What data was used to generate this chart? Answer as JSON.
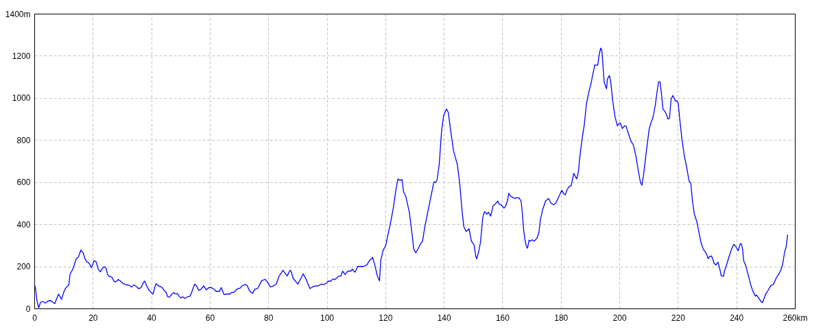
{
  "chart_data": {
    "type": "line",
    "x": [
      0,
      0.3,
      0.8,
      1.4,
      2.0,
      2.7,
      3.7,
      4.7,
      5.5,
      6.3,
      6.9,
      7.4,
      8.2,
      8.8,
      9.2,
      10.0,
      10.6,
      11.7,
      12.1,
      12.9,
      13.5,
      14.1,
      14.5,
      15.0,
      15.8,
      16.6,
      17.2,
      17.8,
      18.6,
      19.4,
      20.3,
      21.0,
      21.8,
      22.5,
      23.2,
      23.9,
      24.4,
      24.9,
      25.4,
      26.4,
      27.2,
      27.7,
      28.6,
      29.3,
      30.1,
      31.3,
      32.5,
      33.1,
      33.9,
      34.8,
      35.6,
      36.4,
      37.2,
      37.6,
      38.4,
      39.1,
      39.9,
      40.5,
      41.1,
      41.5,
      42.6,
      43.5,
      44.3,
      44.9,
      45.5,
      46.0,
      46.7,
      47.5,
      48.1,
      48.8,
      49.4,
      50.0,
      50.6,
      51.4,
      52.3,
      53.1,
      53.7,
      54.7,
      55.3,
      56.1,
      56.9,
      57.8,
      58.7,
      59.6,
      60.4,
      61.3,
      62.1,
      62.7,
      63.1,
      63.8,
      64.7,
      65.9,
      66.7,
      67.2,
      68.2,
      69.3,
      70.2,
      71.1,
      72.2,
      72.7,
      73.5,
      74.5,
      75.3,
      76.2,
      77.6,
      78.8,
      79.5,
      80.6,
      81.4,
      82.6,
      83.5,
      84.9,
      86.3,
      87.3,
      87.6,
      88.4,
      90.0,
      91.0,
      91.8,
      92.9,
      94.1,
      95.5,
      96.9,
      98.0,
      98.8,
      99.8,
      100.2,
      101.2,
      102.0,
      102.7,
      103.9,
      104.7,
      105.3,
      106.1,
      107.1,
      108.1,
      108.6,
      109.3,
      109.6,
      110.4,
      112.4,
      113.6,
      114.4,
      115.1,
      115.5,
      116.3,
      117.1,
      117.9,
      118.3,
      119.1,
      120.0,
      120.8,
      121.8,
      122.6,
      123.5,
      124.2,
      124.9,
      125.6,
      126.1,
      126.9,
      128.1,
      128.9,
      129.6,
      130.3,
      131.2,
      132.0,
      132.6,
      133.4,
      134.5,
      135.5,
      136.5,
      137.1,
      137.6,
      138.3,
      139.1,
      139.8,
      140.8,
      141.4,
      142.2,
      143.2,
      144.5,
      145.3,
      146.1,
      146.7,
      147.5,
      148.5,
      149.3,
      150.2,
      150.8,
      151.1,
      151.8,
      152.4,
      153.2,
      153.8,
      154.6,
      155.1,
      155.9,
      156.7,
      157.6,
      158.3,
      158.8,
      159.5,
      160.4,
      160.9,
      161.6,
      162.1,
      162.5,
      163.1,
      164.1,
      164.7,
      165.6,
      166.3,
      166.7,
      167.2,
      167.7,
      168.1,
      168.5,
      169.0,
      169.4,
      170.0,
      170.8,
      171.8,
      172.4,
      172.9,
      173.7,
      174.7,
      175.7,
      176.5,
      177.4,
      178.2,
      179.2,
      180.2,
      180.8,
      181.4,
      182.0,
      182.7,
      183.4,
      184.3,
      184.7,
      185.3,
      185.9,
      186.3,
      187.1,
      187.9,
      188.6,
      189.4,
      190.2,
      190.8,
      191.5,
      192.5,
      192.9,
      193.5,
      193.9,
      194.3,
      194.7,
      195.5,
      195.8,
      196.5,
      197.0,
      197.6,
      198.4,
      199.2,
      199.8,
      200.2,
      200.9,
      201.6,
      202.2,
      203.0,
      203.8,
      204.7,
      205.5,
      206.4,
      207.1,
      207.6,
      208.2,
      209.2,
      210.1,
      210.6,
      211.4,
      212.2,
      212.7,
      213.3,
      213.8,
      214.3,
      214.8,
      215.5,
      216.2,
      216.5,
      217.0,
      217.6,
      218.2,
      218.7,
      219.1,
      219.5,
      220.0,
      220.5,
      221.3,
      222.1,
      222.9,
      223.7,
      224.3,
      224.9,
      225.5,
      226.3,
      227.1,
      227.8,
      228.6,
      229.2,
      229.7,
      230.2,
      230.6,
      231.4,
      231.9,
      232.3,
      232.9,
      233.6,
      234.3,
      234.7,
      235.5,
      235.8,
      236.6,
      237.4,
      238.2,
      239.0,
      239.6,
      240.5,
      241.2,
      241.6,
      242.0,
      242.4,
      243.1,
      244.1,
      244.9,
      245.6,
      246.4,
      246.8,
      247.6,
      248.4,
      248.8,
      249.2,
      249.8,
      250.7,
      251.7,
      252.5,
      253.5,
      254.3,
      255.1,
      255.7,
      256.4,
      256.9,
      257.4
    ],
    "series": [
      {
        "color": "#0000ff",
        "values": [
          114,
          95,
          38,
          5,
          30,
          35,
          27,
          38,
          39,
          30,
          25,
          43,
          70,
          54,
          45,
          81,
          98,
          114,
          165,
          184,
          206,
          233,
          241,
          247,
          279,
          266,
          238,
          224,
          217,
          195,
          228,
          224,
          186,
          176,
          193,
          200,
          193,
          165,
          154,
          150,
          130,
          128,
          139,
          132,
          121,
          114,
          111,
          103,
          113,
          106,
          95,
          101,
          125,
          132,
          106,
          89,
          76,
          70,
          103,
          119,
          107,
          102,
          87,
          79,
          57,
          55,
          66,
          77,
          71,
          72,
          60,
          51,
          57,
          49,
          57,
          60,
          79,
          117,
          109,
          87,
          93,
          109,
          90,
          101,
          101,
          93,
          82,
          84,
          81,
          101,
          68,
          70,
          70,
          77,
          79,
          95,
          98,
          111,
          115,
          109,
          85,
          73,
          93,
          96,
          133,
          140,
          129,
          104,
          107,
          117,
          153,
          183,
          156,
          183,
          180,
          144,
          117,
          144,
          166,
          137,
          96,
          107,
          109,
          117,
          115,
          122,
          131,
          131,
          142,
          139,
          155,
          155,
          179,
          163,
          179,
          179,
          188,
          176,
          174,
          201,
          201,
          209,
          228,
          236,
          245,
          207,
          158,
          133,
          228,
          277,
          299,
          353,
          418,
          478,
          565,
          617,
          609,
          614,
          557,
          533,
          457,
          370,
          283,
          266,
          288,
          310,
          321,
          391,
          467,
          535,
          603,
          600,
          614,
          685,
          842,
          918,
          949,
          933,
          848,
          750,
          685,
          598,
          467,
          391,
          367,
          380,
          321,
          304,
          250,
          237,
          272,
          315,
          435,
          462,
          449,
          459,
          440,
          489,
          499,
          512,
          497,
          494,
          478,
          484,
          511,
          549,
          538,
          532,
          524,
          527,
          527,
          511,
          456,
          370,
          321,
          296,
          288,
          326,
          321,
          328,
          321,
          337,
          364,
          424,
          473,
          513,
          524,
          502,
          494,
          502,
          532,
          563,
          547,
          541,
          565,
          581,
          585,
          643,
          632,
          617,
          652,
          712,
          804,
          874,
          972,
          1027,
          1070,
          1113,
          1159,
          1157,
          1200,
          1238,
          1227,
          1151,
          1075,
          1045,
          1092,
          1108,
          1070,
          989,
          912,
          869,
          880,
          882,
          856,
          869,
          867,
          831,
          798,
          777,
          728,
          652,
          600,
          587,
          641,
          758,
          856,
          880,
          910,
          970,
          1024,
          1078,
          1078,
          1018,
          948,
          937,
          915,
          901,
          905,
          997,
          1013,
          997,
          986,
          988,
          977,
          905,
          802,
          726,
          672,
          607,
          596,
          509,
          450,
          417,
          363,
          314,
          282,
          271,
          260,
          238,
          247,
          251,
          233,
          215,
          208,
          222,
          184,
          157,
          154,
          179,
          211,
          249,
          282,
          306,
          298,
          276,
          309,
          309,
          282,
          228,
          204,
          152,
          108,
          81,
          60,
          65,
          49,
          33,
          29,
          43,
          67,
          87,
          111,
          114,
          146,
          163,
          184,
          211,
          271,
          293,
          352
        ]
      }
    ],
    "xlim": [
      0,
      260
    ],
    "ylim": [
      0,
      1400
    ],
    "xticks": [
      0,
      20,
      40,
      60,
      80,
      100,
      120,
      140,
      160,
      180,
      200,
      220,
      240,
      {
        "value": 260,
        "label": "260km"
      }
    ],
    "yticks": [
      0,
      200,
      400,
      600,
      800,
      1000,
      1200,
      {
        "value": 1400,
        "label": "1400m"
      }
    ],
    "grid": true,
    "line_style": "solid"
  }
}
